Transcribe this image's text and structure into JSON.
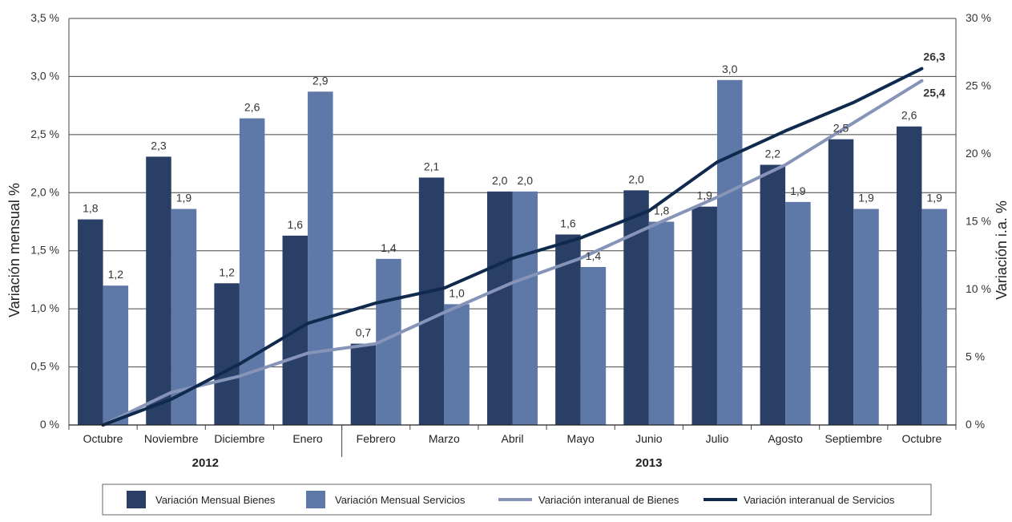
{
  "chart_data": {
    "type": "bar",
    "categories": [
      "Octubre",
      "Noviembre",
      "Diciembre",
      "Enero",
      "Febrero",
      "Marzo",
      "Abril",
      "Mayo",
      "Junio",
      "Julio",
      "Agosto",
      "Septiembre",
      "Octubre"
    ],
    "year_groups": [
      {
        "label": "2012",
        "start": 0,
        "end": 3
      },
      {
        "label": "2013",
        "start": 4,
        "end": 12
      }
    ],
    "ylabel": "Variación mensual %",
    "ylabel_right": "Variación i.a. %",
    "ylim": [
      0,
      3.5
    ],
    "ylim_right": [
      0,
      30
    ],
    "yticks": [
      "0 %",
      "0,5 %",
      "1,0 %",
      "1,5 %",
      "2,0 %",
      "2,5 %",
      "3,0 %",
      "3,5 %"
    ],
    "yticks_right": [
      "0 %",
      "5 %",
      "10 %",
      "15 %",
      "20 %",
      "25 %",
      "30 %"
    ],
    "grid": true,
    "legend_position": "bottom",
    "series": [
      {
        "name": "Variación Mensual Bienes",
        "kind": "bar",
        "axis": "left",
        "color": "#2a3f66",
        "values": [
          1.77,
          2.31,
          1.22,
          1.63,
          0.7,
          2.13,
          2.01,
          1.64,
          2.02,
          1.88,
          2.24,
          2.46,
          2.57
        ],
        "labels": [
          "1,8",
          "2,3",
          "1,2",
          "1,6",
          "0,7",
          "2,1",
          "2,0",
          "1,6",
          "2,0",
          "1,9",
          "2,2",
          "2,5",
          "2,6"
        ]
      },
      {
        "name": "Variación Mensual Servicios",
        "kind": "bar",
        "axis": "left",
        "color": "#5e78a8",
        "values": [
          1.2,
          1.86,
          2.64,
          2.87,
          1.43,
          1.04,
          2.01,
          1.36,
          1.75,
          2.97,
          1.92,
          1.86,
          1.86
        ],
        "labels": [
          "1,2",
          "1,9",
          "2,6",
          "2,9",
          "1,4",
          "1,0",
          "2,0",
          "1,4",
          "1,8",
          "3,0",
          "1,9",
          "1,9",
          "1,9"
        ]
      },
      {
        "name": "Variación interanual de Bienes",
        "kind": "line",
        "axis": "right",
        "color": "#8694b8",
        "values": [
          0.0,
          2.4,
          3.6,
          5.3,
          6.0,
          8.3,
          10.5,
          12.3,
          14.6,
          16.8,
          19.2,
          22.3,
          25.4
        ],
        "end_label": "25,4"
      },
      {
        "name": "Variación interanual de Servicios",
        "kind": "line",
        "axis": "right",
        "color": "#0f2a4d",
        "values": [
          0.0,
          1.9,
          4.5,
          7.5,
          9.0,
          10.1,
          12.3,
          13.8,
          15.8,
          19.4,
          21.7,
          23.8,
          26.3
        ],
        "end_label": "26,3"
      }
    ]
  }
}
